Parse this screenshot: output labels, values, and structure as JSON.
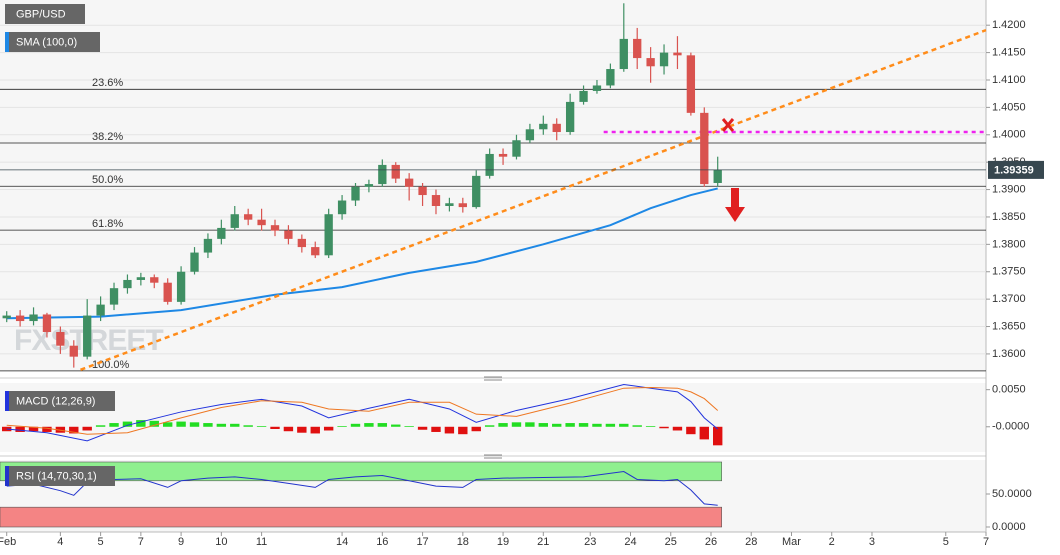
{
  "chart_data": [
    {
      "type": "candlestick",
      "title": "GBP/USD",
      "watermark": "FXSTREET",
      "x": [
        0,
        1,
        2,
        3,
        4,
        5,
        6,
        7,
        8,
        9,
        10,
        11,
        12,
        13,
        14,
        15,
        16,
        17,
        18,
        19,
        20,
        21,
        22,
        23,
        24,
        25,
        26,
        27,
        28,
        29,
        30,
        31,
        32,
        33,
        34,
        35,
        36,
        37,
        38,
        39,
        40,
        41,
        42,
        43,
        44,
        45,
        46,
        47,
        48,
        49,
        50,
        51,
        52,
        53
      ],
      "open": [
        1.3665,
        1.367,
        1.366,
        1.3672,
        1.364,
        1.3615,
        1.3595,
        1.367,
        1.369,
        1.372,
        1.3735,
        1.374,
        1.373,
        1.3695,
        1.375,
        1.3785,
        1.381,
        1.383,
        1.3855,
        1.3845,
        1.3835,
        1.3825,
        1.381,
        1.3795,
        1.378,
        1.3855,
        1.388,
        1.3905,
        1.391,
        1.3945,
        1.392,
        1.3905,
        1.389,
        1.387,
        1.3875,
        1.3868,
        1.3925,
        1.3965,
        1.396,
        1.399,
        1.401,
        1.402,
        1.4005,
        1.406,
        1.408,
        1.409,
        1.412,
        1.4175,
        1.414,
        1.4125,
        1.415,
        1.4145,
        1.404,
        1.3912
      ],
      "high": [
        1.3678,
        1.368,
        1.3685,
        1.3675,
        1.365,
        1.3625,
        1.37,
        1.3705,
        1.373,
        1.3745,
        1.3748,
        1.3745,
        1.3738,
        1.376,
        1.3795,
        1.382,
        1.3845,
        1.387,
        1.3865,
        1.3865,
        1.3845,
        1.3835,
        1.3818,
        1.3805,
        1.3865,
        1.389,
        1.3912,
        1.3918,
        1.3955,
        1.395,
        1.393,
        1.3912,
        1.39,
        1.3885,
        1.3885,
        1.3935,
        1.3975,
        1.3975,
        1.4,
        1.402,
        1.4035,
        1.403,
        1.4075,
        1.409,
        1.41,
        1.413,
        1.424,
        1.4195,
        1.416,
        1.4165,
        1.418,
        1.415,
        1.405,
        1.396
      ],
      "low": [
        1.3658,
        1.365,
        1.3652,
        1.363,
        1.36,
        1.3575,
        1.359,
        1.366,
        1.368,
        1.371,
        1.3725,
        1.372,
        1.369,
        1.369,
        1.3745,
        1.3775,
        1.38,
        1.3825,
        1.3835,
        1.3825,
        1.3815,
        1.38,
        1.3785,
        1.3775,
        1.3775,
        1.3845,
        1.387,
        1.3895,
        1.3905,
        1.3912,
        1.388,
        1.387,
        1.3855,
        1.386,
        1.3858,
        1.3865,
        1.392,
        1.3945,
        1.3955,
        1.3985,
        1.4,
        1.399,
        1.4,
        1.4055,
        1.4075,
        1.4085,
        1.4115,
        1.412,
        1.4095,
        1.411,
        1.412,
        1.4035,
        1.3905,
        1.3905
      ],
      "close": [
        1.367,
        1.366,
        1.3672,
        1.364,
        1.3615,
        1.3595,
        1.367,
        1.369,
        1.372,
        1.3735,
        1.374,
        1.373,
        1.3695,
        1.375,
        1.3785,
        1.381,
        1.383,
        1.3855,
        1.3845,
        1.3835,
        1.3825,
        1.381,
        1.3795,
        1.378,
        1.3855,
        1.388,
        1.3905,
        1.391,
        1.3945,
        1.392,
        1.3905,
        1.389,
        1.387,
        1.3875,
        1.3868,
        1.3925,
        1.3965,
        1.396,
        1.399,
        1.401,
        1.402,
        1.4005,
        1.406,
        1.408,
        1.409,
        1.412,
        1.4175,
        1.414,
        1.4125,
        1.415,
        1.4145,
        1.404,
        1.391,
        1.39359
      ],
      "up_color": "#3f8f63",
      "down_color": "#d9534f",
      "series": [
        {
          "name": "SMA (100,0)",
          "color": "#1e88e5",
          "x": [
            0,
            7,
            13,
            20,
            25,
            30,
            35,
            40,
            45,
            48,
            51,
            53
          ],
          "values": [
            1.3665,
            1.3668,
            1.368,
            1.3708,
            1.3722,
            1.3748,
            1.3768,
            1.38,
            1.3835,
            1.3866,
            1.389,
            1.3902
          ]
        }
      ],
      "fib_levels": [
        {
          "label": "23.6%",
          "value": 1.4083
        },
        {
          "label": "38.2%",
          "value": 1.3985
        },
        {
          "label": "50.0%",
          "value": 1.3906
        },
        {
          "label": "61.8%",
          "value": 1.3826
        },
        {
          "label": "100.0%",
          "value": 1.3569
        }
      ],
      "trendline": {
        "color": "#ff8c1a",
        "x": [
          5.5,
          73
        ],
        "y": [
          1.3571,
          1.4191
        ]
      },
      "resistance": {
        "color": "#ee22ee",
        "x": [
          44.5,
          73
        ],
        "value": 1.4005
      },
      "last_price": 1.39359,
      "xlim": [
        -0.5,
        73
      ],
      "ylim": [
        1.3567,
        1.4246
      ],
      "yticks": [
        {
          "value": 1.36,
          "label": "1.3600"
        },
        {
          "value": 1.365,
          "label": "1.3650"
        },
        {
          "value": 1.37,
          "label": "1.3700"
        },
        {
          "value": 1.375,
          "label": "1.3750"
        },
        {
          "value": 1.38,
          "label": "1.3800"
        },
        {
          "value": 1.385,
          "label": "1.3850"
        },
        {
          "value": 1.39,
          "label": "1.3900"
        },
        {
          "value": 1.395,
          "label": "1.3950"
        },
        {
          "value": 1.4,
          "label": "1.4000"
        },
        {
          "value": 1.405,
          "label": "1.4050"
        },
        {
          "value": 1.41,
          "label": "1.4100"
        },
        {
          "value": 1.415,
          "label": "1.4150"
        },
        {
          "value": 1.42,
          "label": "1.4200"
        }
      ],
      "grid": true
    },
    {
      "type": "macd",
      "title": "MACD (12,26,9)",
      "x": [
        0,
        1,
        2,
        3,
        4,
        5,
        6,
        7,
        8,
        9,
        10,
        11,
        12,
        13,
        14,
        15,
        16,
        17,
        18,
        19,
        20,
        21,
        22,
        23,
        24,
        25,
        26,
        27,
        28,
        29,
        30,
        31,
        32,
        33,
        34,
        35,
        36,
        37,
        38,
        39,
        40,
        41,
        42,
        43,
        44,
        45,
        46,
        47,
        48,
        49,
        50,
        51,
        52,
        53
      ],
      "values": [
        -0.0006,
        -0.0007,
        -0.0006,
        -0.0007,
        -0.0008,
        -0.0009,
        -0.0005,
        0.0002,
        0.0005,
        0.0007,
        0.0009,
        0.0008,
        0.0006,
        0.0007,
        0.0006,
        0.0005,
        0.0004,
        0.0004,
        0.0002,
        0.0001,
        -0.0003,
        -0.0006,
        -0.0008,
        -0.0009,
        -0.0005,
        0.0001,
        0.0004,
        0.0005,
        0.0005,
        0.0003,
        0.0001,
        -0.0004,
        -0.0007,
        -0.0009,
        -0.001,
        -0.0006,
        0.0002,
        0.0005,
        0.0006,
        0.0006,
        0.0005,
        0.0004,
        0.0005,
        0.0005,
        0.0004,
        0.0004,
        0.0004,
        0.0002,
        0.0001,
        -0.0002,
        -0.0005,
        -0.001,
        -0.0017,
        -0.0025
      ],
      "up_color": "#22dd22",
      "down_color": "#e01010",
      "series": [
        {
          "color": "#2233dd",
          "x": [
            0,
            3,
            6,
            9,
            13,
            16,
            19,
            22,
            24,
            27,
            30,
            33,
            35,
            38,
            42,
            46,
            48,
            50,
            51,
            52,
            53
          ],
          "values": [
            -0.0003,
            -0.0008,
            -0.0019,
            0.0002,
            0.002,
            0.003,
            0.0037,
            0.0028,
            0.0012,
            0.0025,
            0.0037,
            0.0024,
            0.0006,
            0.0022,
            0.0038,
            0.0057,
            0.0052,
            0.0047,
            0.0034,
            0.0012,
            -0.0003
          ]
        },
        {
          "color": "#ee7722",
          "x": [
            0,
            3,
            6,
            9,
            13,
            16,
            19,
            22,
            24,
            27,
            30,
            33,
            35,
            38,
            42,
            46,
            48,
            50,
            51,
            52,
            53
          ],
          "values": [
            0.0002,
            -0.0002,
            -0.001,
            -0.0008,
            0.0012,
            0.0026,
            0.0035,
            0.0033,
            0.0024,
            0.0021,
            0.0033,
            0.0033,
            0.0017,
            0.0014,
            0.0032,
            0.0052,
            0.0053,
            0.0052,
            0.0047,
            0.0038,
            0.0022
          ]
        }
      ],
      "xlim": [
        -0.5,
        73
      ],
      "ylim": [
        -0.0034,
        0.0059
      ],
      "yticks": [
        {
          "value": 0.005,
          "label": "0.0050"
        },
        {
          "value": 0,
          "label": "-0.0000"
        }
      ]
    },
    {
      "type": "rsi",
      "title": "RSI (14,70,30,1)",
      "bands": [
        {
          "from": 70,
          "to": 100,
          "color": "#8ff08f"
        },
        {
          "from": 0,
          "to": 30,
          "color": "#f48484"
        }
      ],
      "series": [
        {
          "color": "#2233cc",
          "x": [
            0,
            2,
            4,
            5,
            6,
            8,
            10,
            12,
            13,
            15,
            17,
            19,
            21,
            23,
            24,
            26,
            28,
            30,
            32,
            34,
            35,
            37,
            40,
            43,
            46,
            47,
            49,
            50,
            51,
            52,
            53
          ],
          "values": [
            62,
            65,
            55,
            48,
            68,
            72,
            73,
            60,
            70,
            74,
            76,
            72,
            66,
            60,
            72,
            76,
            78,
            70,
            62,
            60,
            72,
            74,
            75,
            76,
            84,
            72,
            70,
            72,
            56,
            35,
            33
          ]
        }
      ],
      "xlim": [
        -0.5,
        73
      ],
      "ylim": [
        -7.6,
        101.5
      ],
      "yticks": [
        {
          "value": 50,
          "label": "50.0000"
        },
        {
          "value": 0,
          "label": "0.0000"
        }
      ],
      "xticks": [
        {
          "value": 0,
          "label": "Feb"
        },
        {
          "value": 4,
          "label": "4"
        },
        {
          "value": 7,
          "label": "5"
        },
        {
          "value": 10,
          "label": "7"
        },
        {
          "value": 13,
          "label": "9"
        },
        {
          "value": 16,
          "label": "10"
        },
        {
          "value": 19,
          "label": "11"
        },
        {
          "value": 25,
          "label": "14"
        },
        {
          "value": 28,
          "label": "16"
        },
        {
          "value": 31,
          "label": "17"
        },
        {
          "value": 34,
          "label": "18"
        },
        {
          "value": 37,
          "label": "19"
        },
        {
          "value": 40,
          "label": "21"
        },
        {
          "value": 43.5,
          "label": "23"
        },
        {
          "value": 46.5,
          "label": "24"
        },
        {
          "value": 49.5,
          "label": "25"
        },
        {
          "value": 52.5,
          "label": "26"
        },
        {
          "value": 55.5,
          "label": "28"
        },
        {
          "value": 58.5,
          "label": "Mar"
        },
        {
          "value": 61.5,
          "label": "2"
        },
        {
          "value": 64.5,
          "label": "3"
        },
        {
          "value": 70,
          "label": "5"
        },
        {
          "value": 73,
          "label": "7"
        }
      ]
    }
  ]
}
